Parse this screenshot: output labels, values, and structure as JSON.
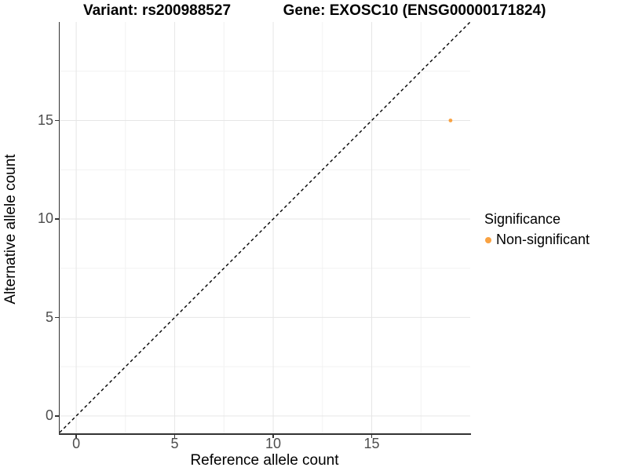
{
  "titles": {
    "left": "Variant: rs200988527",
    "right": "Gene: EXOSC10 (ENSG00000171824)"
  },
  "axes": {
    "x": {
      "label": "Reference allele count"
    },
    "y": {
      "label": "Alternative allele count"
    }
  },
  "legend": {
    "title": "Significance",
    "items": [
      {
        "label": "Non-significant",
        "color": "#F9A242"
      }
    ]
  },
  "chart_data": {
    "type": "scatter",
    "title_left": "Variant: rs200988527",
    "title_right": "Gene: EXOSC10 (ENSG00000171824)",
    "xlabel": "Reference allele count",
    "ylabel": "Alternative allele count",
    "xlim": [
      -0.84,
      20
    ],
    "ylim": [
      -0.88,
      20
    ],
    "x_major_ticks": [
      0,
      5,
      10,
      15
    ],
    "y_major_ticks": [
      0,
      5,
      10,
      15
    ],
    "x_minor_ticks": [
      2.5,
      7.5,
      12.5,
      17.5
    ],
    "y_minor_ticks": [
      2.5,
      7.5,
      12.5,
      17.5
    ],
    "grid": "major+minor",
    "legend_position": "right",
    "reference_line": {
      "kind": "identity",
      "slope": 1,
      "intercept": 0,
      "style": "dashed",
      "color": "#000000"
    },
    "series": [
      {
        "name": "Non-significant",
        "color": "#F9A242",
        "points": [
          {
            "x": 19,
            "y": 15
          }
        ]
      }
    ]
  },
  "colors": {
    "grid_major": "#E6E6E6",
    "grid_minor": "#F2F2F2",
    "axis_line": "#333333",
    "tick_mark": "#333333",
    "tick_label": "#4D4D4D",
    "point": "#F9A242",
    "background": "#FFFFFF"
  }
}
